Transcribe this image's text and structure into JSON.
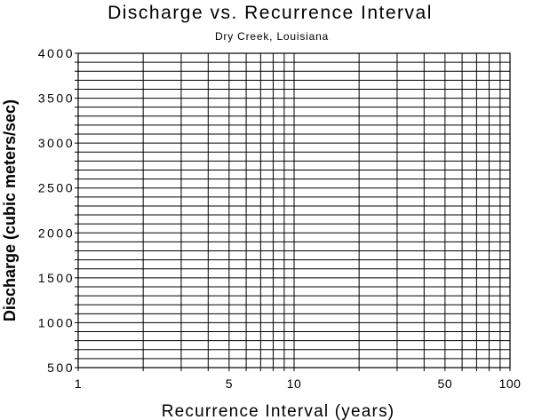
{
  "chart_data": {
    "type": "line",
    "title": "Discharge vs. Recurrence Interval",
    "subtitle": "Dry Creek, Louisiana",
    "xlabel": "Recurrence Interval (years)",
    "ylabel": "Discharge (cubic meters/sec)",
    "x_scale": "log",
    "xlim": [
      1,
      100
    ],
    "ylim": [
      500,
      4000
    ],
    "x_tick_values": [
      1,
      5,
      10,
      50,
      100
    ],
    "x_tick_labels": [
      "1",
      "5",
      "10",
      "50",
      "100"
    ],
    "y_tick_values": [
      4000,
      3500,
      3000,
      2500,
      2000,
      1500,
      1000,
      500
    ],
    "y_tick_labels": [
      "4000",
      "3500",
      "3000",
      "2500",
      "2000",
      "1500",
      "1000",
      "500"
    ],
    "x_gridlines": [
      1,
      2,
      3,
      4,
      5,
      6,
      7,
      8,
      9,
      10,
      20,
      30,
      40,
      50,
      60,
      70,
      80,
      90,
      100
    ],
    "y_minor_step": 100,
    "grid": true,
    "series": []
  }
}
